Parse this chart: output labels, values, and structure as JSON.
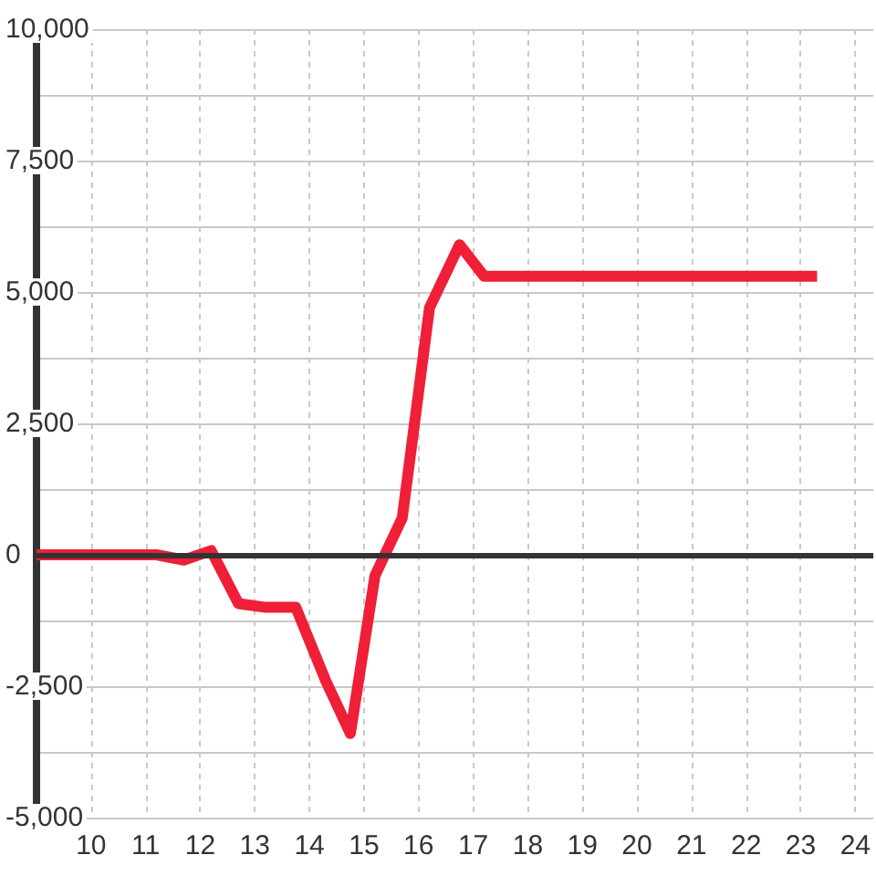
{
  "chart_data": {
    "type": "line",
    "x": [
      9,
      11.2,
      11.7,
      12.2,
      12.7,
      13.2,
      13.75,
      14.3,
      14.75,
      15.2,
      15.7,
      16.2,
      16.75,
      17.2,
      23.3
    ],
    "values": [
      0,
      0,
      -100,
      80,
      -930,
      -1000,
      -1000,
      -2400,
      -3400,
      -400,
      700,
      4700,
      5900,
      5300,
      5300
    ],
    "color": "#ee1f37",
    "xlim": [
      9,
      24.33
    ],
    "xticks": [
      10,
      11,
      12,
      13,
      14,
      15,
      16,
      17,
      18,
      19,
      20,
      21,
      22,
      23,
      24
    ],
    "ylim": [
      -5000,
      10000
    ],
    "yticks": [
      {
        "value": -5000,
        "label": "-5,000"
      },
      {
        "value": -3750,
        "label": null
      },
      {
        "value": -2500,
        "label": "-2,500"
      },
      {
        "value": -1250,
        "label": null
      },
      0,
      {
        "value": 1250,
        "label": null
      },
      {
        "value": 2500,
        "label": "2,500"
      },
      {
        "value": 3750,
        "label": null
      },
      {
        "value": 5000,
        "label": "5,000"
      },
      {
        "value": 6250,
        "label": null
      },
      {
        "value": 7500,
        "label": "7,500"
      },
      {
        "value": 8750,
        "label": null
      },
      {
        "value": 10000,
        "label": "10,000"
      }
    ],
    "grid": true,
    "marker": "none",
    "line_style": "solid",
    "ref_lines": [
      {
        "axis": "y",
        "value": 0,
        "color": "#333333"
      }
    ]
  }
}
